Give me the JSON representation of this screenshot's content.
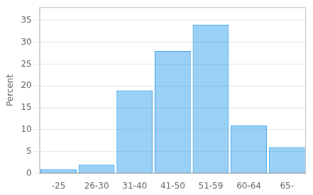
{
  "chart_data": {
    "type": "bar",
    "categories": [
      "-25",
      "26-30",
      "31-40",
      "41-50",
      "51-59",
      "60-64",
      "65-"
    ],
    "values": [
      1,
      2,
      19,
      28,
      34,
      11,
      6
    ],
    "ylabel": "Percent",
    "ylim": [
      0,
      38
    ],
    "yticks": [
      0,
      5,
      10,
      15,
      20,
      25,
      30,
      35
    ],
    "grid": true
  }
}
